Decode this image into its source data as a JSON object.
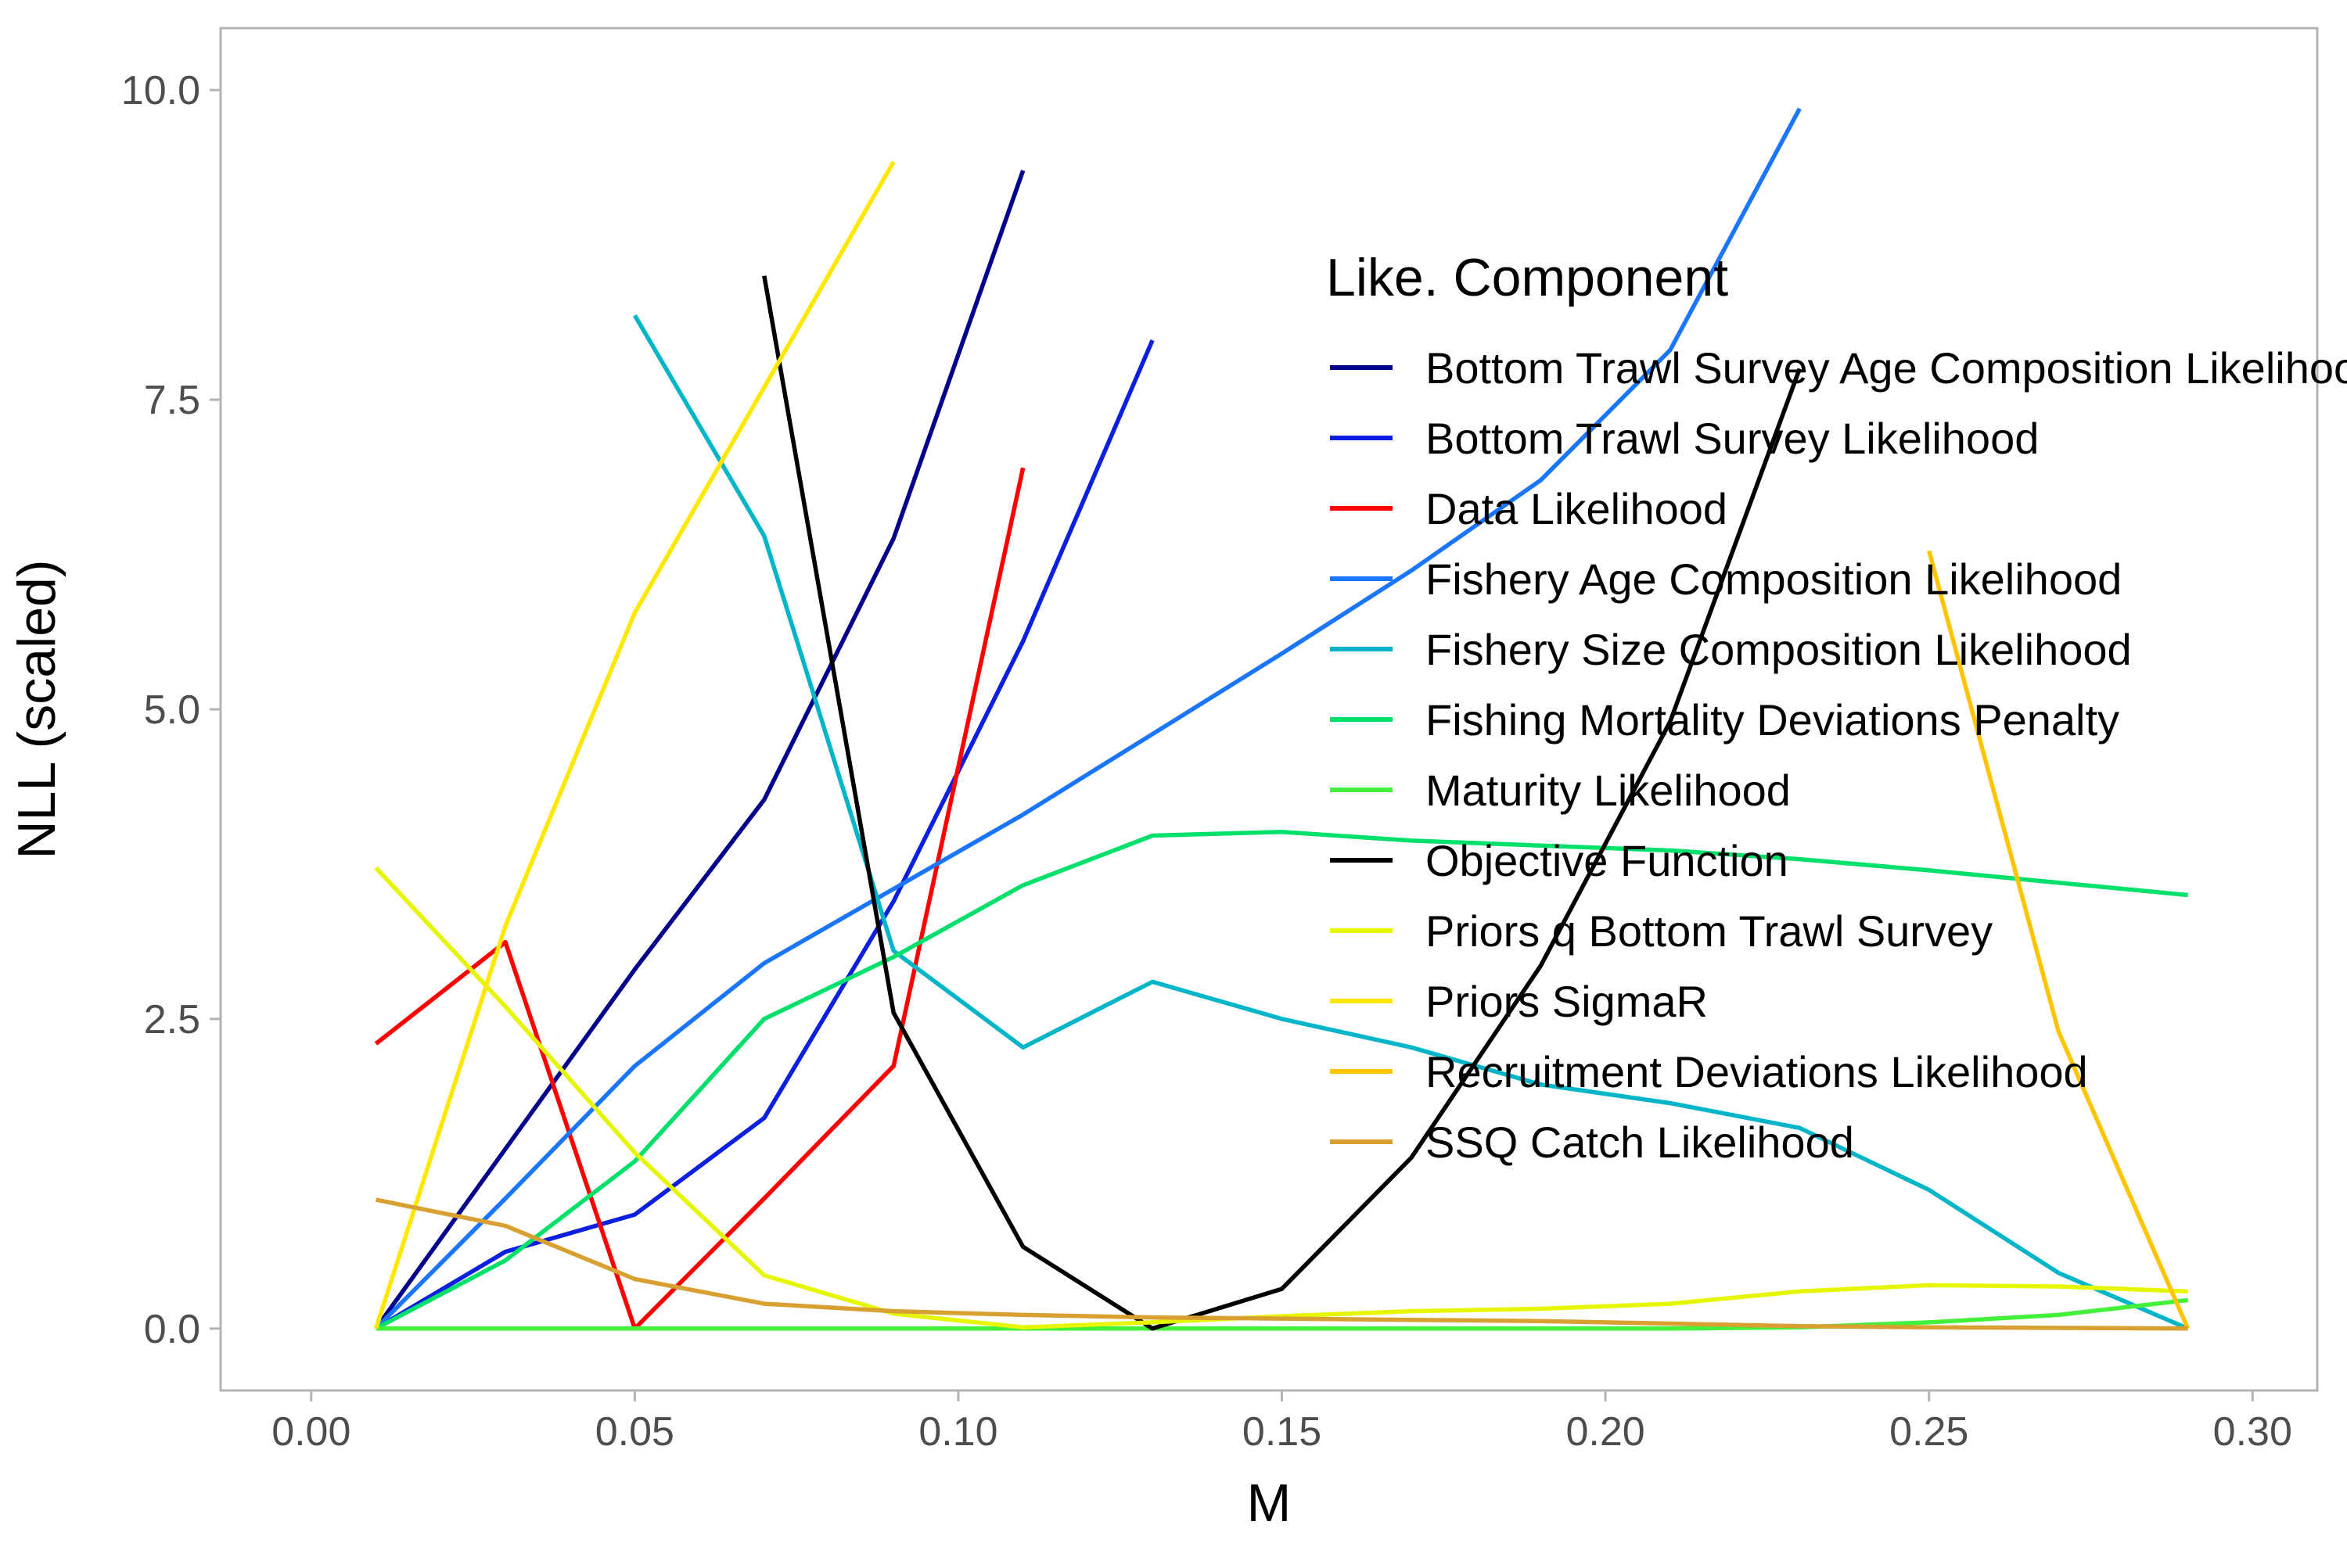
{
  "chart_data": {
    "type": "line",
    "xlabel": "M",
    "ylabel": "NLL (scaled)",
    "xlim": [
      -0.014,
      0.31
    ],
    "ylim": [
      -0.5,
      10.5
    ],
    "x_ticks": [
      0.0,
      0.05,
      0.1,
      0.15,
      0.2,
      0.25,
      0.3
    ],
    "x_tick_labels": [
      "0.00",
      "0.05",
      "0.10",
      "0.15",
      "0.20",
      "0.25",
      "0.30"
    ],
    "y_ticks": [
      0.0,
      2.5,
      5.0,
      7.5,
      10.0
    ],
    "y_tick_labels": [
      "0.0",
      "2.5",
      "5.0",
      "7.5",
      "10.0"
    ],
    "grid": false,
    "legend": {
      "title": "Like. Component",
      "placement": "inside-right"
    },
    "series": [
      {
        "name": "Bottom Trawl Survey Age Composition Likelihood",
        "color": "#00008b",
        "x": [
          0.01,
          0.03,
          0.05,
          0.07,
          0.09,
          0.11
        ],
        "y": [
          0,
          1.45,
          2.9,
          4.27,
          6.38,
          9.35
        ]
      },
      {
        "name": "Bottom Trawl Survey Likelihood",
        "color": "#0a1fe0",
        "x": [
          0.01,
          0.03,
          0.05,
          0.07,
          0.09,
          0.11,
          0.13
        ],
        "y": [
          0,
          0.62,
          0.92,
          1.7,
          3.45,
          5.55,
          7.98
        ]
      },
      {
        "name": "Data Likelihood",
        "color": "#ff0000",
        "x": [
          0.01,
          0.03,
          0.05,
          0.07,
          0.09,
          0.11
        ],
        "y": [
          2.3,
          3.12,
          0,
          1.05,
          2.12,
          6.95
        ]
      },
      {
        "name": "Fishery Age Composition Likelihood",
        "color": "#1a75ff",
        "x": [
          0.01,
          0.03,
          0.05,
          0.07,
          0.09,
          0.11,
          0.13,
          0.15,
          0.17,
          0.19,
          0.21,
          0.23
        ],
        "y": [
          0,
          1.05,
          2.12,
          2.95,
          3.55,
          4.15,
          4.8,
          5.45,
          6.12,
          6.85,
          7.9,
          9.85
        ]
      },
      {
        "name": "Fishery Size Composition Likelihood",
        "color": "#00b5c8",
        "x": [
          0.05,
          0.07,
          0.09,
          0.11,
          0.13,
          0.15,
          0.17,
          0.19,
          0.21,
          0.23,
          0.25,
          0.27,
          0.29
        ],
        "y": [
          8.18,
          6.4,
          3.05,
          2.27,
          2.8,
          2.5,
          2.27,
          1.97,
          1.82,
          1.62,
          1.12,
          0.45,
          0
        ]
      },
      {
        "name": "Fishing Mortality Deviations Penalty",
        "color": "#00e06a",
        "x": [
          0.01,
          0.03,
          0.05,
          0.07,
          0.09,
          0.11,
          0.13,
          0.15,
          0.17,
          0.19,
          0.21,
          0.23,
          0.25,
          0.27,
          0.29
        ],
        "y": [
          0,
          0.55,
          1.35,
          2.5,
          3.0,
          3.58,
          3.98,
          4.01,
          3.94,
          3.9,
          3.86,
          3.79,
          3.7,
          3.6,
          3.5
        ]
      },
      {
        "name": "Maturity Likelihood",
        "color": "#44f03a",
        "x": [
          0.01,
          0.03,
          0.05,
          0.07,
          0.09,
          0.11,
          0.13,
          0.15,
          0.17,
          0.19,
          0.21,
          0.23,
          0.25,
          0.27,
          0.29
        ],
        "y": [
          0,
          0,
          0,
          0,
          0,
          0,
          0,
          0,
          0,
          0,
          0,
          0.01,
          0.05,
          0.11,
          0.23
        ]
      },
      {
        "name": "Objective Function",
        "color": "#000000",
        "x": [
          0.07,
          0.09,
          0.11,
          0.13,
          0.15,
          0.17,
          0.19,
          0.21,
          0.23
        ],
        "y": [
          8.5,
          2.55,
          0.66,
          0,
          0.32,
          1.38,
          2.93,
          4.9,
          7.75
        ]
      },
      {
        "name": "Priors q Bottom Trawl Survey",
        "color": "#e6f500",
        "x": [
          0.01,
          0.03,
          0.05,
          0.07,
          0.09,
          0.11,
          0.13,
          0.15,
          0.17,
          0.19,
          0.21,
          0.23,
          0.25,
          0.27,
          0.29
        ],
        "y": [
          3.72,
          2.6,
          1.42,
          0.43,
          0.12,
          0.01,
          0.05,
          0.1,
          0.14,
          0.16,
          0.2,
          0.3,
          0.35,
          0.34,
          0.3
        ]
      },
      {
        "name": "Priors SigmaR",
        "color": "#ffe800",
        "x": [
          0.01,
          0.03,
          0.05,
          0.07,
          0.09
        ],
        "y": [
          0,
          3.25,
          5.78,
          7.6,
          9.42
        ]
      },
      {
        "name": "Recruitment Deviations Likelihood",
        "color": "#ffc400",
        "x": [
          0.25,
          0.27,
          0.29
        ],
        "y": [
          6.28,
          2.4,
          0
        ]
      },
      {
        "name": "SSQ Catch Likelihood",
        "color": "#d8a030",
        "x": [
          0.01,
          0.03,
          0.05,
          0.07,
          0.09,
          0.11,
          0.13,
          0.15,
          0.17,
          0.19,
          0.21,
          0.23,
          0.25,
          0.27,
          0.29
        ],
        "y": [
          1.04,
          0.83,
          0.4,
          0.2,
          0.14,
          0.11,
          0.09,
          0.08,
          0.07,
          0.06,
          0.04,
          0.02,
          0.01,
          0.005,
          0
        ]
      }
    ]
  }
}
